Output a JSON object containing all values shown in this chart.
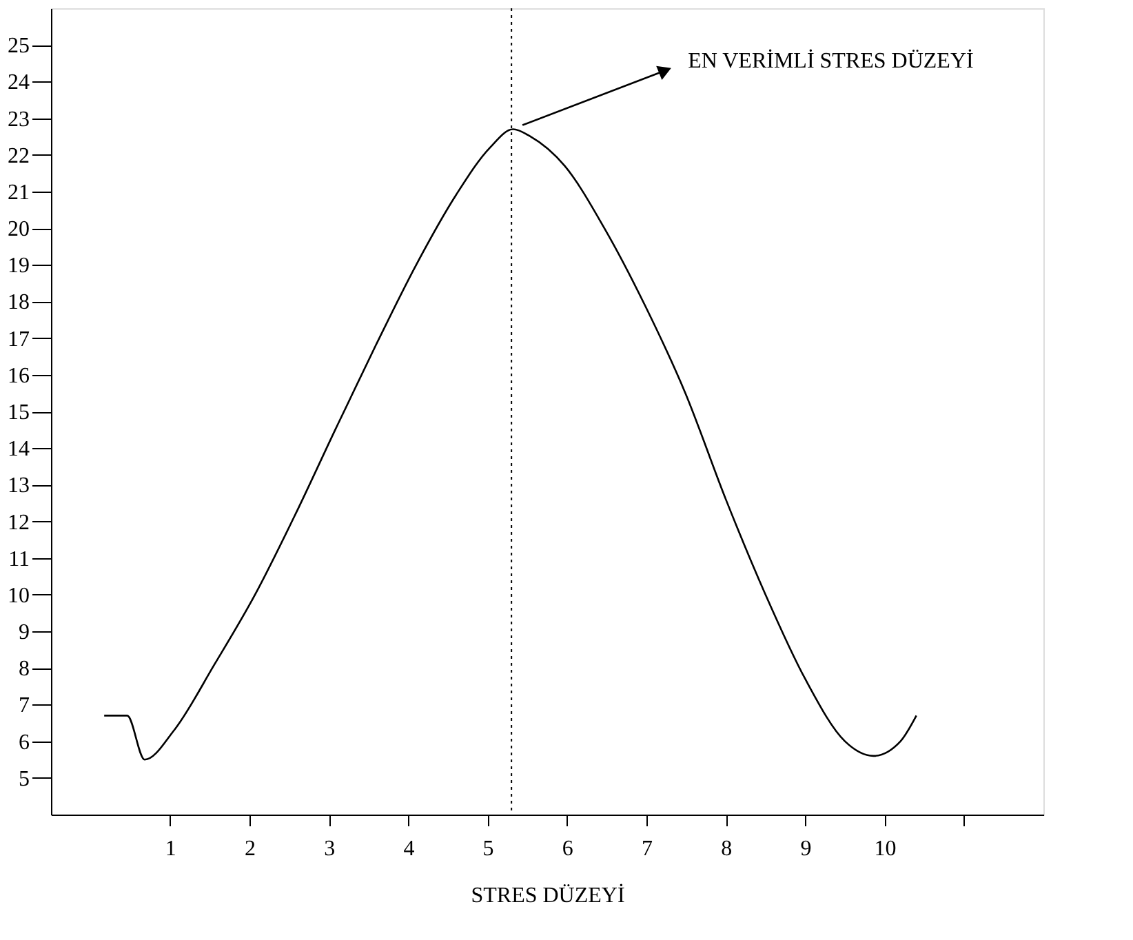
{
  "chart_data": {
    "type": "line",
    "xlabel": "STRES DÜZEYİ",
    "x": [
      0.17,
      0.46,
      0.68,
      1.05,
      1.56,
      2.07,
      2.58,
      3.08,
      3.59,
      4.1,
      4.6,
      5.03,
      5.32,
      5.54,
      5.97,
      6.47,
      6.98,
      7.49,
      8.0,
      8.5,
      9.0,
      9.5,
      9.86,
      10.2,
      10.4
    ],
    "series": [
      {
        "color": "#000000",
        "values": [
          6.7,
          6.7,
          5.5,
          6.3,
          8.1,
          10.0,
          12.2,
          14.5,
          16.8,
          19.0,
          20.9,
          22.2,
          22.7,
          22.5,
          21.7,
          20.0,
          17.9,
          15.5,
          12.6,
          10.0,
          7.7,
          6.0,
          5.6,
          6.0,
          6.7
        ]
      }
    ],
    "xlim": [
      -0.5,
      12
    ],
    "ylim": [
      4,
      26
    ],
    "xticks": [
      1,
      2,
      3,
      4,
      5,
      6,
      7,
      8,
      9,
      10,
      {
        "value": 11,
        "label": null
      }
    ],
    "yticks": [
      5,
      6,
      7,
      8,
      9,
      10,
      11,
      12,
      13,
      14,
      15,
      16,
      17,
      18,
      19,
      20,
      21,
      22,
      23,
      24,
      25
    ],
    "ref_lines": [
      {
        "axis": "x",
        "value": 5.3,
        "label": null,
        "color": "#000000",
        "line_style": "dotted"
      }
    ],
    "annotations": [
      {
        "text": "EN VERİMLİ STRES DÜZEYİ",
        "x": 5.3,
        "y": 22.7
      }
    ],
    "grid": false,
    "marker": "none",
    "line_style": "solid"
  }
}
